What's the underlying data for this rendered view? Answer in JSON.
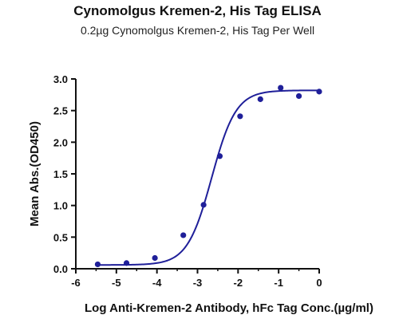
{
  "chart_data": {
    "type": "scatter",
    "title": "Cynomolgus Kremen-2, His Tag ELISA",
    "subtitle": "0.2µg Cynomolgus Kremen-2, His Tag Per Well",
    "xlabel": "Log Anti-Kremen-2 Antibody, hFc Tag Conc.(µg/ml)",
    "ylabel": "Mean Abs.(OD450)",
    "xlim": [
      -6,
      0
    ],
    "ylim": [
      0,
      3.0
    ],
    "x_ticks": [
      "-6",
      "-5",
      "-4",
      "-3",
      "-2",
      "-1",
      "0"
    ],
    "y_ticks": [
      "0.0",
      "0.5",
      "1.0",
      "1.5",
      "2.0",
      "2.5",
      "3.0"
    ],
    "grid": false,
    "series": [
      {
        "points": [
          {
            "x": -5.46,
            "y": 0.07
          },
          {
            "x": -4.75,
            "y": 0.09
          },
          {
            "x": -4.05,
            "y": 0.17
          },
          {
            "x": -3.35,
            "y": 0.53
          },
          {
            "x": -2.85,
            "y": 1.01
          },
          {
            "x": -2.45,
            "y": 1.78
          },
          {
            "x": -1.95,
            "y": 2.41
          },
          {
            "x": -1.45,
            "y": 2.68
          },
          {
            "x": -0.95,
            "y": 2.86
          },
          {
            "x": -0.5,
            "y": 2.73
          },
          {
            "x": 0.0,
            "y": 2.8
          }
        ],
        "fit": {
          "bottom": 0.06,
          "top": 2.82,
          "log_ec50": -2.65,
          "hill": 1.45
        }
      }
    ],
    "colors": {
      "series": "#1f1f99",
      "axis": "#111111"
    }
  }
}
